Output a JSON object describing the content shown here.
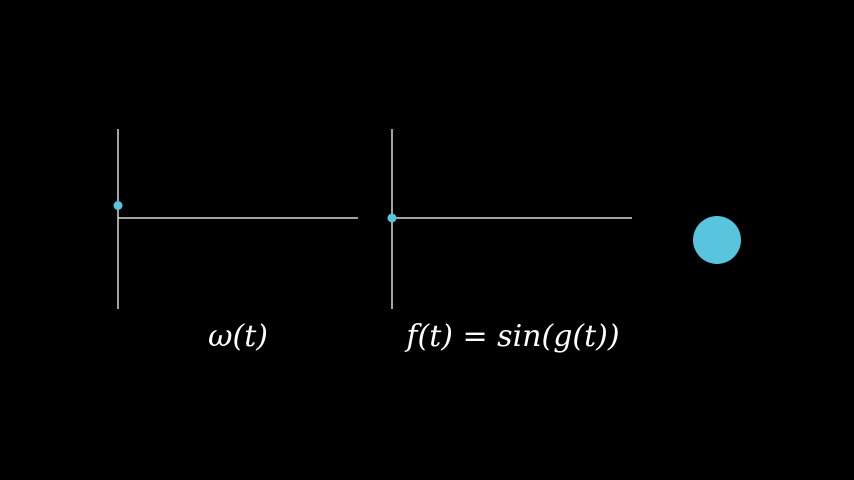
{
  "colors": {
    "background": "#000000",
    "axis": "#d9d9d9",
    "accent": "#58c4dd",
    "text": "#ffffff"
  },
  "panels": [
    {
      "label": "ω(t)",
      "dot_value": 0.14
    },
    {
      "label": "f(t) = sin(g(t))",
      "dot_value": 0.0
    }
  ],
  "rotating_dot": {
    "shape": "circle",
    "color": "#58c4dd"
  }
}
